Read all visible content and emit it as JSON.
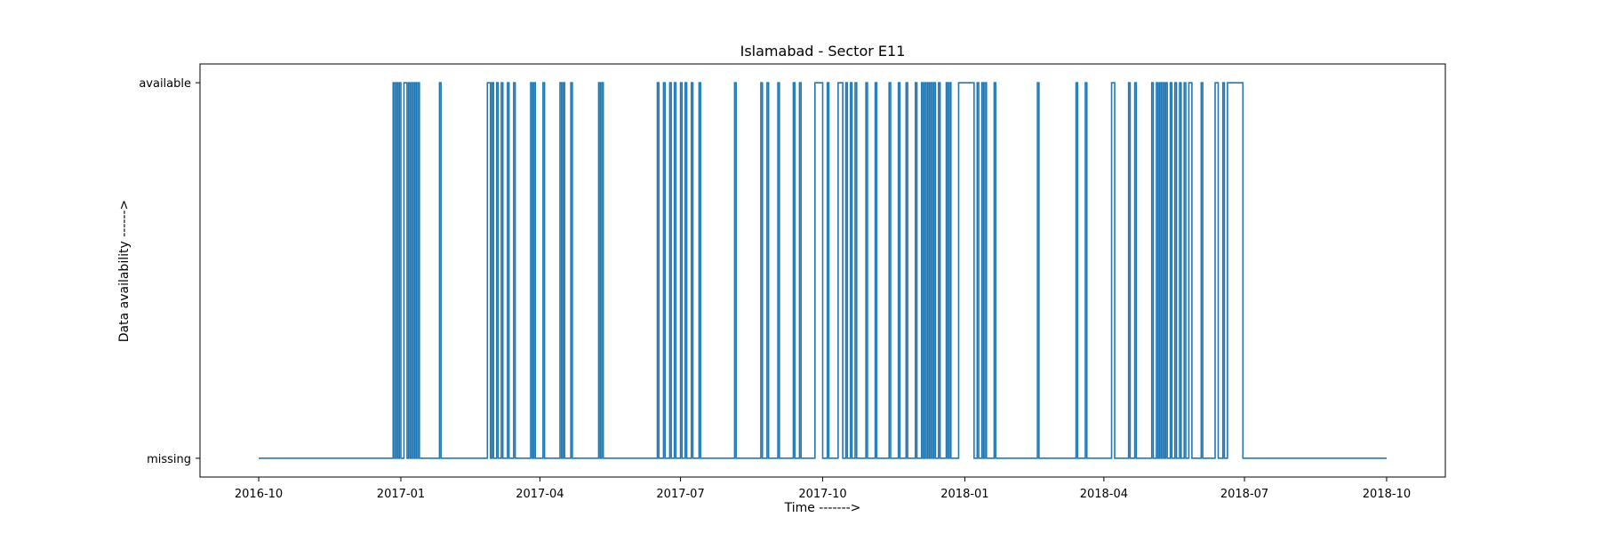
{
  "chart_data": {
    "type": "line",
    "title": "Islamabad - Sector E11",
    "xlabel": "Time ------->",
    "ylabel": "Data availability ------>",
    "xlim": [
      "2016-08-24",
      "2018-11-08"
    ],
    "ylim": [
      -0.05,
      1.05
    ],
    "x_ticks": [
      "2016-10",
      "2017-01",
      "2017-04",
      "2017-07",
      "2017-10",
      "2018-01",
      "2018-04",
      "2018-07",
      "2018-10"
    ],
    "y_ticks": [
      {
        "value": 0,
        "label": "missing"
      },
      {
        "value": 1,
        "label": "available"
      }
    ],
    "grid": false,
    "series": [
      {
        "color": "#1f77b4",
        "step": true,
        "points": [
          [
            "2016-10-01",
            0
          ],
          [
            "2016-12-27",
            1
          ],
          [
            "2016-12-28",
            0
          ],
          [
            "2016-12-29",
            1
          ],
          [
            "2016-12-30",
            0
          ],
          [
            "2016-12-31",
            1
          ],
          [
            "2017-01-01",
            0
          ],
          [
            "2017-01-03",
            1
          ],
          [
            "2017-01-05",
            0
          ],
          [
            "2017-01-06",
            1
          ],
          [
            "2017-01-07",
            0
          ],
          [
            "2017-01-08",
            1
          ],
          [
            "2017-01-09",
            0
          ],
          [
            "2017-01-10",
            1
          ],
          [
            "2017-01-11",
            0
          ],
          [
            "2017-01-12",
            1
          ],
          [
            "2017-01-13",
            0
          ],
          [
            "2017-01-26",
            1
          ],
          [
            "2017-01-27",
            0
          ],
          [
            "2017-02-26",
            1
          ],
          [
            "2017-02-28",
            0
          ],
          [
            "2017-03-01",
            1
          ],
          [
            "2017-03-02",
            0
          ],
          [
            "2017-03-04",
            1
          ],
          [
            "2017-03-05",
            0
          ],
          [
            "2017-03-07",
            1
          ],
          [
            "2017-03-08",
            0
          ],
          [
            "2017-03-11",
            1
          ],
          [
            "2017-03-12",
            0
          ],
          [
            "2017-03-15",
            1
          ],
          [
            "2017-03-16",
            0
          ],
          [
            "2017-03-26",
            1
          ],
          [
            "2017-03-27",
            0
          ],
          [
            "2017-03-28",
            1
          ],
          [
            "2017-03-29",
            0
          ],
          [
            "2017-04-03",
            1
          ],
          [
            "2017-04-04",
            0
          ],
          [
            "2017-04-14",
            1
          ],
          [
            "2017-04-15",
            0
          ],
          [
            "2017-04-16",
            1
          ],
          [
            "2017-04-17",
            0
          ],
          [
            "2017-04-21",
            1
          ],
          [
            "2017-04-22",
            0
          ],
          [
            "2017-05-09",
            1
          ],
          [
            "2017-05-10",
            0
          ],
          [
            "2017-05-11",
            1
          ],
          [
            "2017-05-12",
            0
          ],
          [
            "2017-06-16",
            1
          ],
          [
            "2017-06-17",
            0
          ],
          [
            "2017-06-20",
            1
          ],
          [
            "2017-06-21",
            0
          ],
          [
            "2017-06-24",
            1
          ],
          [
            "2017-06-25",
            0
          ],
          [
            "2017-06-27",
            1
          ],
          [
            "2017-06-28",
            0
          ],
          [
            "2017-07-01",
            1
          ],
          [
            "2017-07-02",
            0
          ],
          [
            "2017-07-04",
            1
          ],
          [
            "2017-07-05",
            0
          ],
          [
            "2017-07-08",
            1
          ],
          [
            "2017-07-09",
            0
          ],
          [
            "2017-07-13",
            1
          ],
          [
            "2017-07-14",
            0
          ],
          [
            "2017-08-05",
            1
          ],
          [
            "2017-08-06",
            0
          ],
          [
            "2017-08-22",
            1
          ],
          [
            "2017-08-23",
            0
          ],
          [
            "2017-08-26",
            1
          ],
          [
            "2017-08-27",
            0
          ],
          [
            "2017-09-02",
            1
          ],
          [
            "2017-09-03",
            0
          ],
          [
            "2017-09-12",
            1
          ],
          [
            "2017-09-13",
            0
          ],
          [
            "2017-09-16",
            1
          ],
          [
            "2017-09-17",
            0
          ],
          [
            "2017-09-26",
            1
          ],
          [
            "2017-10-01",
            0
          ],
          [
            "2017-10-04",
            1
          ],
          [
            "2017-10-05",
            0
          ],
          [
            "2017-10-11",
            1
          ],
          [
            "2017-10-14",
            0
          ],
          [
            "2017-10-16",
            1
          ],
          [
            "2017-10-17",
            0
          ],
          [
            "2017-10-19",
            1
          ],
          [
            "2017-10-20",
            0
          ],
          [
            "2017-10-22",
            1
          ],
          [
            "2017-10-23",
            0
          ],
          [
            "2017-10-29",
            1
          ],
          [
            "2017-10-30",
            0
          ],
          [
            "2017-11-04",
            1
          ],
          [
            "2017-11-05",
            0
          ],
          [
            "2017-11-13",
            1
          ],
          [
            "2017-11-14",
            0
          ],
          [
            "2017-11-19",
            1
          ],
          [
            "2017-11-20",
            0
          ],
          [
            "2017-11-24",
            1
          ],
          [
            "2017-11-25",
            0
          ],
          [
            "2017-11-30",
            1
          ],
          [
            "2017-12-01",
            0
          ],
          [
            "2017-12-04",
            1
          ],
          [
            "2017-12-05",
            0
          ],
          [
            "2017-12-06",
            1
          ],
          [
            "2017-12-07",
            0
          ],
          [
            "2017-12-08",
            1
          ],
          [
            "2017-12-09",
            0
          ],
          [
            "2017-12-10",
            1
          ],
          [
            "2017-12-11",
            0
          ],
          [
            "2017-12-12",
            1
          ],
          [
            "2017-12-13",
            0
          ],
          [
            "2017-12-15",
            1
          ],
          [
            "2017-12-16",
            0
          ],
          [
            "2017-12-20",
            1
          ],
          [
            "2017-12-21",
            0
          ],
          [
            "2017-12-22",
            1
          ],
          [
            "2017-12-23",
            0
          ],
          [
            "2017-12-28",
            1
          ],
          [
            "2018-01-07",
            0
          ],
          [
            "2018-01-09",
            1
          ],
          [
            "2018-01-10",
            0
          ],
          [
            "2018-01-12",
            1
          ],
          [
            "2018-01-13",
            0
          ],
          [
            "2018-01-14",
            1
          ],
          [
            "2018-01-15",
            0
          ],
          [
            "2018-01-20",
            1
          ],
          [
            "2018-01-21",
            0
          ],
          [
            "2018-02-17",
            1
          ],
          [
            "2018-02-18",
            0
          ],
          [
            "2018-03-14",
            1
          ],
          [
            "2018-03-15",
            0
          ],
          [
            "2018-03-20",
            1
          ],
          [
            "2018-03-21",
            0
          ],
          [
            "2018-04-06",
            1
          ],
          [
            "2018-04-08",
            0
          ],
          [
            "2018-04-17",
            1
          ],
          [
            "2018-04-18",
            0
          ],
          [
            "2018-04-21",
            1
          ],
          [
            "2018-04-22",
            0
          ],
          [
            "2018-05-02",
            1
          ],
          [
            "2018-05-03",
            0
          ],
          [
            "2018-05-05",
            1
          ],
          [
            "2018-05-06",
            0
          ],
          [
            "2018-05-07",
            1
          ],
          [
            "2018-05-08",
            0
          ],
          [
            "2018-05-09",
            1
          ],
          [
            "2018-05-10",
            0
          ],
          [
            "2018-05-11",
            1
          ],
          [
            "2018-05-12",
            0
          ],
          [
            "2018-05-14",
            1
          ],
          [
            "2018-05-15",
            0
          ],
          [
            "2018-05-17",
            1
          ],
          [
            "2018-05-18",
            0
          ],
          [
            "2018-05-20",
            1
          ],
          [
            "2018-05-21",
            0
          ],
          [
            "2018-05-23",
            1
          ],
          [
            "2018-05-24",
            0
          ],
          [
            "2018-05-26",
            1
          ],
          [
            "2018-05-28",
            0
          ],
          [
            "2018-06-03",
            1
          ],
          [
            "2018-06-04",
            0
          ],
          [
            "2018-06-12",
            1
          ],
          [
            "2018-06-14",
            0
          ],
          [
            "2018-06-17",
            1
          ],
          [
            "2018-06-18",
            0
          ],
          [
            "2018-06-20",
            1
          ],
          [
            "2018-06-30",
            0
          ],
          [
            "2018-10-01",
            0
          ]
        ]
      }
    ]
  }
}
